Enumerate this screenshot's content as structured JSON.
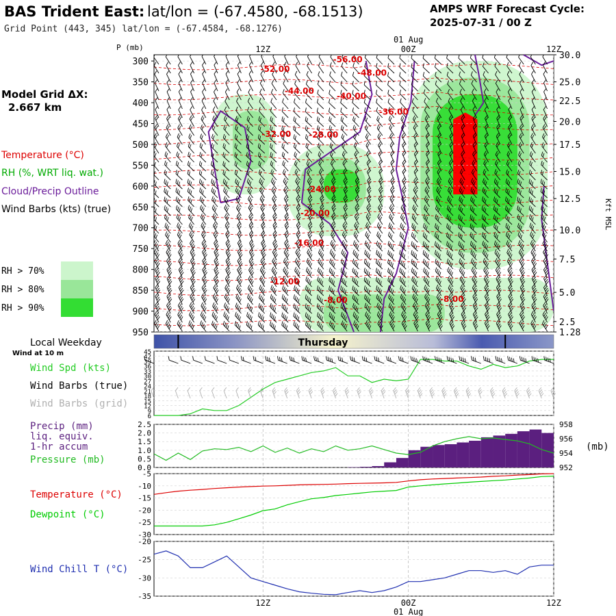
{
  "header": {
    "station_title": "BAS Trident East:",
    "latlon_title": "lat/lon = (-67.4580, -68.1513)",
    "grid_point": "Grid Point (443, 345) lat/lon = (-67.4584, -68.1276)",
    "cycle_label": "AMPS WRF Forecast Cycle:",
    "cycle_value": "2025-07-31 / 00  Z"
  },
  "left_panel": {
    "grid_dx_label": "Model Grid ΔX:",
    "grid_dx_value": "2.667 km",
    "legend": [
      {
        "text": "Temperature (°C)",
        "color": "#dd0000"
      },
      {
        "text": "RH (%, WRT liq. wat.)",
        "color": "#00aa00"
      },
      {
        "text": "Cloud/Precip Outline",
        "color": "#6a1b9a"
      },
      {
        "text": "Wind Barbs (kts) (true)",
        "color": "#000000"
      }
    ],
    "rh_legend": [
      {
        "text": "RH > 70%",
        "color": "#ccf5cc"
      },
      {
        "text": "RH > 80%",
        "color": "#99e699"
      },
      {
        "text": "RH > 90%",
        "color": "#33dd33"
      }
    ]
  },
  "time_axis": {
    "labels": [
      "12Z",
      "00Z",
      "12Z"
    ],
    "hours": [
      12,
      24,
      36
    ],
    "date_label": "01 Aug"
  },
  "colors": {
    "temperature": "#dd0000",
    "dewpoint": "#00cc00",
    "rh": "#33dd33",
    "cloud": "#6a1b9a",
    "precip": "#5b1f7f",
    "windchill": "#1f2fb0",
    "pressure": "#22bb22",
    "windspeed": "#22cc22",
    "day_bar": "#4a5bb0"
  },
  "chart_data": [
    {
      "type": "heatmap",
      "title": "",
      "ylabel_left": "P (mb)",
      "ylabel_right": "Kft MSL",
      "pressure_ticks": [
        300,
        350,
        400,
        450,
        500,
        550,
        600,
        650,
        700,
        750,
        800,
        850,
        900,
        950
      ],
      "kft_ticks": [
        "30.0",
        "25.0",
        "22.5",
        "20.0",
        "17.5",
        "15.0",
        "12.5",
        "10.0",
        "7.5",
        "5.0",
        "2.5",
        "1.28"
      ],
      "kft_tick_pressures": [
        285,
        350,
        395,
        445,
        500,
        565,
        630,
        705,
        775,
        855,
        925,
        950
      ],
      "ylim": [
        950,
        285
      ],
      "xlim": [
        3,
        36
      ],
      "temperature_labels": [
        {
          "text": "-56.00",
          "x": 19.0,
          "p": 303
        },
        {
          "text": "-52.00",
          "x": 13.0,
          "p": 326
        },
        {
          "text": "-48.00",
          "x": 21.0,
          "p": 335
        },
        {
          "text": "-44.00",
          "x": 15.0,
          "p": 379
        },
        {
          "text": "-40.00",
          "x": 19.3,
          "p": 391
        },
        {
          "text": "-36.00",
          "x": 22.8,
          "p": 429
        },
        {
          "text": "-32.00",
          "x": 13.1,
          "p": 482
        },
        {
          "text": "-28.00",
          "x": 17.0,
          "p": 484
        },
        {
          "text": "-24.00",
          "x": 16.8,
          "p": 614
        },
        {
          "text": "-20.00",
          "x": 16.3,
          "p": 672
        },
        {
          "text": "-16.00",
          "x": 15.8,
          "p": 743
        },
        {
          "text": "-12.00",
          "x": 13.8,
          "p": 836
        },
        {
          "text": "-8.00",
          "x": 18.0,
          "p": 880
        },
        {
          "text": "-8.00",
          "x": 27.6,
          "p": 878
        }
      ],
      "rh_regions": [
        {
          "level": 70,
          "x_range": [
            8,
            13
          ],
          "p_range": [
            380,
            620
          ]
        },
        {
          "level": 80,
          "x_range": [
            9.5,
            12.5
          ],
          "p_range": [
            420,
            560
          ]
        },
        {
          "level": 70,
          "x_range": [
            14,
            22
          ],
          "p_range": [
            500,
            720
          ]
        },
        {
          "level": 80,
          "x_range": [
            15,
            20.5
          ],
          "p_range": [
            530,
            680
          ]
        },
        {
          "level": 90,
          "x_range": [
            17,
            20
          ],
          "p_range": [
            560,
            640
          ]
        },
        {
          "level": 70,
          "x_range": [
            24,
            35.5
          ],
          "p_range": [
            300,
            800
          ]
        },
        {
          "level": 80,
          "x_range": [
            25,
            34
          ],
          "p_range": [
            340,
            760
          ]
        },
        {
          "level": 90,
          "x_range": [
            26,
            33
          ],
          "p_range": [
            380,
            700
          ]
        },
        {
          "level": 70,
          "x_range": [
            15,
            36
          ],
          "p_range": [
            820,
            950
          ]
        },
        {
          "level": 80,
          "x_range": [
            17,
            27
          ],
          "p_range": [
            860,
            950
          ]
        }
      ],
      "max_rh_core": {
        "x_range": [
          27.7,
          29.7
        ],
        "p_range": [
          440,
          620
        ]
      },
      "series": [
        {
          "name": "Cloud/Precip Outline",
          "points": [
            [
              8.5,
              640
            ],
            [
              8.0,
              560
            ],
            [
              7.5,
              470
            ],
            [
              8.5,
              420
            ],
            [
              10.5,
              460
            ],
            [
              11.0,
              540
            ],
            [
              10.0,
              630
            ],
            [
              8.5,
              640
            ]
          ]
        },
        {
          "name": "Cloud/Precip Outline",
          "points": [
            [
              20.5,
              300
            ],
            [
              21.0,
              380
            ],
            [
              20.0,
              470
            ],
            [
              17.5,
              520
            ],
            [
              15.5,
              560
            ],
            [
              15.2,
              640
            ],
            [
              17.5,
              690
            ],
            [
              19.0,
              760
            ],
            [
              18.2,
              850
            ],
            [
              19.5,
              950
            ]
          ]
        },
        {
          "name": "Cloud/Precip Outline",
          "points": [
            [
              24.5,
              300
            ],
            [
              24.2,
              400
            ],
            [
              23.3,
              480
            ],
            [
              23.0,
              560
            ],
            [
              23.6,
              640
            ],
            [
              24.0,
              700
            ],
            [
              23.0,
              810
            ],
            [
              22.0,
              870
            ],
            [
              21.7,
              950
            ]
          ]
        },
        {
          "name": "Cloud/Precip Outline",
          "points": [
            [
              29.5,
              285
            ],
            [
              29.8,
              330
            ],
            [
              30.2,
              400
            ],
            [
              29.5,
              430
            ]
          ]
        },
        {
          "name": "Cloud/Precip Outline",
          "points": [
            [
              33.5,
              285
            ],
            [
              35.0,
              310
            ],
            [
              36.0,
              300
            ]
          ]
        },
        {
          "name": "Cloud/Precip Outline",
          "points": [
            [
              35.2,
              600
            ],
            [
              35.0,
              680
            ],
            [
              36.0,
              900
            ]
          ]
        }
      ]
    },
    {
      "type": "bar",
      "title": "Local Weekday",
      "label": "Thursday",
      "day_markers": [
        5,
        32
      ]
    },
    {
      "type": "line",
      "title": "Wind at 10 m",
      "ylim": [
        6,
        45
      ],
      "yticks": [
        6,
        9,
        12,
        15,
        18,
        21,
        24,
        27,
        30,
        33,
        36,
        39,
        42,
        45
      ],
      "legend": [
        "Wind Spd (kts)",
        "Wind Barbs (true)",
        "Wind Barbs (grid)"
      ],
      "x": [
        3,
        5,
        6,
        7,
        8,
        9,
        10,
        11,
        12,
        13,
        14,
        15,
        16,
        17,
        18,
        19,
        20,
        21,
        22,
        23,
        24,
        25,
        26,
        27,
        28,
        29,
        30,
        31,
        32,
        33,
        34,
        35,
        36
      ],
      "series": [
        {
          "name": "Wind Spd (kts)",
          "values": [
            6,
            6,
            7,
            10,
            9,
            9,
            12,
            17,
            22,
            26,
            28,
            30,
            32,
            33,
            35,
            30,
            30,
            26,
            28,
            27,
            28,
            40,
            40,
            39,
            39,
            36,
            34,
            37,
            35,
            36,
            39,
            40,
            40
          ]
        }
      ]
    },
    {
      "type": "bar",
      "title": "",
      "legend": [
        "Precip (mm)",
        "liq. equiv.",
        "1-hr accum",
        "Pressure (mb)"
      ],
      "ylim": [
        0,
        2.5
      ],
      "yticks": [
        "0.0",
        "0.5",
        "1.0",
        "1.5",
        "2.0",
        "2.5"
      ],
      "right_ylim": [
        952,
        958
      ],
      "right_yticks": [
        "952",
        "954",
        "956",
        "958"
      ],
      "right_label": "(mb)",
      "x": [
        20,
        21,
        22,
        23,
        24,
        25,
        26,
        27,
        28,
        29,
        30,
        31,
        32,
        33,
        34,
        35,
        36
      ],
      "values": [
        0.02,
        0.04,
        0.08,
        0.3,
        0.55,
        1.0,
        1.2,
        1.3,
        1.35,
        1.45,
        1.55,
        1.75,
        1.85,
        1.95,
        2.1,
        2.2,
        2.0
      ],
      "series": [
        {
          "name": "Pressure (mb)",
          "x": [
            3,
            4,
            5,
            6,
            7,
            8,
            9,
            10,
            11,
            12,
            13,
            14,
            15,
            16,
            17,
            18,
            19,
            20,
            21,
            22,
            23,
            24,
            25,
            26,
            27,
            28,
            29,
            30,
            31,
            32,
            33,
            34,
            35,
            36
          ],
          "values": [
            953.9,
            953.0,
            954.0,
            953.1,
            954.3,
            954.6,
            954.5,
            954.8,
            954.2,
            955.0,
            954.1,
            954.7,
            954.0,
            954.6,
            954.2,
            955.0,
            954.4,
            954.6,
            955.0,
            954.5,
            954.0,
            953.8,
            954.1,
            955.0,
            955.6,
            956.0,
            956.3,
            956.0,
            956.1,
            955.9,
            955.7,
            955.3,
            954.5,
            954.0
          ]
        }
      ]
    },
    {
      "type": "line",
      "title": "",
      "ylim": [
        -30,
        -5
      ],
      "yticks": [
        -30,
        -25,
        -20,
        -15,
        -10,
        -5
      ],
      "legend": [
        "Temperature (°C)",
        "Dewpoint (°C)"
      ],
      "x": [
        3,
        4,
        5,
        6,
        7,
        8,
        9,
        10,
        11,
        12,
        13,
        14,
        15,
        16,
        17,
        18,
        19,
        20,
        21,
        22,
        23,
        24,
        25,
        26,
        27,
        28,
        29,
        30,
        31,
        32,
        33,
        34,
        35,
        36
      ],
      "series": [
        {
          "name": "Temperature (°C)",
          "values": [
            -13.5,
            -12.8,
            -12.2,
            -11.8,
            -11.5,
            -11.1,
            -10.8,
            -10.5,
            -10.3,
            -10.1,
            -10.0,
            -9.8,
            -9.6,
            -9.5,
            -9.4,
            -9.3,
            -9.1,
            -9.0,
            -8.9,
            -8.8,
            -8.6,
            -8.0,
            -7.5,
            -7.2,
            -7.0,
            -6.8,
            -6.6,
            -6.4,
            -6.1,
            -5.9,
            -5.6,
            -5.4,
            -5.1,
            -5.0
          ]
        },
        {
          "name": "Dewpoint (°C)",
          "values": [
            -26.5,
            -26.5,
            -26.5,
            -26.5,
            -26.5,
            -26.0,
            -25.0,
            -23.5,
            -22.0,
            -20.2,
            -19.5,
            -17.8,
            -16.5,
            -15.3,
            -14.8,
            -14.0,
            -13.5,
            -13.0,
            -12.5,
            -12.2,
            -11.9,
            -10.5,
            -10.0,
            -9.6,
            -9.2,
            -8.9,
            -8.5,
            -8.2,
            -7.9,
            -7.6,
            -7.2,
            -6.8,
            -6.2,
            -6.0
          ]
        }
      ]
    },
    {
      "type": "line",
      "title": "",
      "ylim": [
        -35,
        -20
      ],
      "yticks": [
        -35,
        -30,
        -25,
        -20
      ],
      "legend": [
        "Wind Chill T (°C)"
      ],
      "x": [
        3,
        4,
        5,
        6,
        7,
        8,
        9,
        10,
        11,
        12,
        13,
        14,
        15,
        16,
        17,
        18,
        19,
        20,
        21,
        22,
        23,
        24,
        25,
        26,
        27,
        28,
        29,
        30,
        31,
        32,
        33,
        34,
        35,
        36
      ],
      "series": [
        {
          "name": "Wind Chill T (°C)",
          "values": [
            -23.5,
            -22.6,
            -24.0,
            -27.2,
            -27.2,
            -25.6,
            -24.0,
            -27.0,
            -30.0,
            -31.0,
            -32.0,
            -33.0,
            -33.8,
            -34.2,
            -34.5,
            -34.6,
            -34.0,
            -33.5,
            -34.0,
            -33.5,
            -32.5,
            -31.0,
            -31.0,
            -30.5,
            -30.0,
            -29.0,
            -28.0,
            -28.0,
            -28.5,
            -28.0,
            -29.0,
            -27.0,
            -26.5,
            -26.5
          ]
        }
      ]
    }
  ]
}
